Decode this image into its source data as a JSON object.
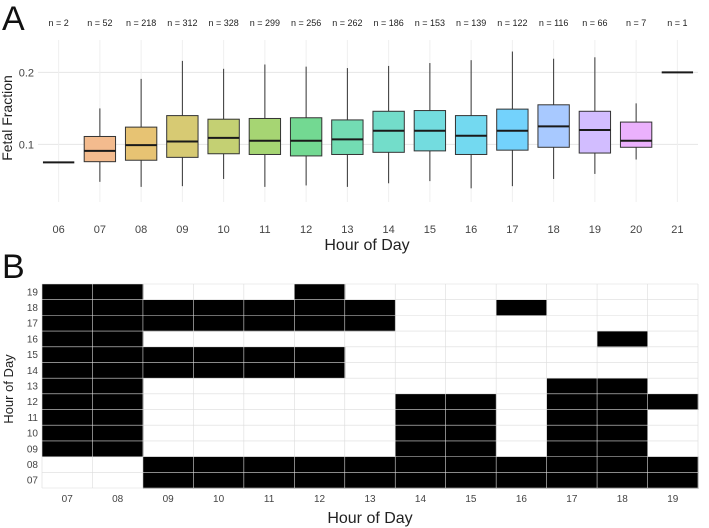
{
  "panels": {
    "a_label": "A",
    "b_label": "B"
  },
  "chart_data": [
    {
      "type": "boxplot",
      "xlabel": "Hour of Day",
      "ylabel": "Fetal Fraction",
      "ylim": [
        0.02,
        0.245
      ],
      "yticks": [
        0.1,
        0.2
      ],
      "ytick_labels": [
        "0.1",
        "0.2"
      ],
      "grid": true,
      "categories": [
        "06",
        "07",
        "08",
        "09",
        "10",
        "11",
        "12",
        "13",
        "14",
        "15",
        "16",
        "17",
        "18",
        "19",
        "20",
        "21"
      ],
      "n_labels": [
        "n = 2",
        "n = 52",
        "n = 218",
        "n = 312",
        "n = 328",
        "n = 299",
        "n = 256",
        "n = 262",
        "n = 186",
        "n = 153",
        "n = 139",
        "n = 122",
        "n = 116",
        "n = 66",
        "n = 7",
        "n = 1"
      ],
      "colors": [
        "#f8766d",
        "#ea8331",
        "#d39200",
        "#b79f00",
        "#93aa00",
        "#5eb300",
        "#00ba38",
        "#00bf74",
        "#00c19f",
        "#00bfc4",
        "#00b9e3",
        "#00adfa",
        "#619cff",
        "#ae87ff",
        "#db72fb",
        "#f564e3"
      ],
      "boxes": [
        {
          "min": 0.075,
          "q1": 0.075,
          "median": 0.075,
          "q3": 0.075,
          "max": 0.075
        },
        {
          "min": 0.048,
          "q1": 0.076,
          "median": 0.091,
          "q3": 0.111,
          "max": 0.15
        },
        {
          "min": 0.041,
          "q1": 0.078,
          "median": 0.099,
          "q3": 0.124,
          "max": 0.191
        },
        {
          "min": 0.042,
          "q1": 0.082,
          "median": 0.104,
          "q3": 0.14,
          "max": 0.216
        },
        {
          "min": 0.052,
          "q1": 0.087,
          "median": 0.109,
          "q3": 0.135,
          "max": 0.205
        },
        {
          "min": 0.041,
          "q1": 0.086,
          "median": 0.105,
          "q3": 0.136,
          "max": 0.211
        },
        {
          "min": 0.043,
          "q1": 0.084,
          "median": 0.105,
          "q3": 0.137,
          "max": 0.208
        },
        {
          "min": 0.041,
          "q1": 0.086,
          "median": 0.107,
          "q3": 0.134,
          "max": 0.206
        },
        {
          "min": 0.046,
          "q1": 0.089,
          "median": 0.119,
          "q3": 0.146,
          "max": 0.209
        },
        {
          "min": 0.049,
          "q1": 0.091,
          "median": 0.119,
          "q3": 0.147,
          "max": 0.213
        },
        {
          "min": 0.039,
          "q1": 0.086,
          "median": 0.112,
          "q3": 0.14,
          "max": 0.217
        },
        {
          "min": 0.042,
          "q1": 0.092,
          "median": 0.119,
          "q3": 0.149,
          "max": 0.229
        },
        {
          "min": 0.052,
          "q1": 0.096,
          "median": 0.125,
          "q3": 0.155,
          "max": 0.219
        },
        {
          "min": 0.059,
          "q1": 0.088,
          "median": 0.12,
          "q3": 0.146,
          "max": 0.221
        },
        {
          "min": 0.079,
          "q1": 0.096,
          "median": 0.105,
          "q3": 0.131,
          "max": 0.157
        },
        {
          "min": 0.2,
          "q1": 0.2,
          "median": 0.2,
          "q3": 0.2,
          "max": 0.2
        }
      ]
    },
    {
      "type": "heatmap",
      "xlabel": "Hour of Day",
      "ylabel": "Hour of Day",
      "x_categories": [
        "07",
        "08",
        "09",
        "10",
        "11",
        "12",
        "13",
        "14",
        "15",
        "16",
        "17",
        "18",
        "19"
      ],
      "y_categories": [
        "19",
        "18",
        "17",
        "16",
        "15",
        "14",
        "13",
        "12",
        "11",
        "10",
        "09",
        "08",
        "07"
      ],
      "colors": {
        "filled": "#000000",
        "empty": "#ffffff",
        "grid": "#dcdcdc"
      },
      "matrix": [
        [
          1,
          1,
          0,
          0,
          0,
          1,
          0,
          0,
          0,
          0,
          0,
          0,
          0
        ],
        [
          1,
          1,
          1,
          1,
          1,
          1,
          1,
          0,
          0,
          1,
          0,
          0,
          0
        ],
        [
          1,
          1,
          1,
          1,
          1,
          1,
          1,
          0,
          0,
          0,
          0,
          0,
          0
        ],
        [
          1,
          1,
          0,
          0,
          0,
          0,
          0,
          0,
          0,
          0,
          0,
          1,
          0
        ],
        [
          1,
          1,
          1,
          1,
          1,
          1,
          0,
          0,
          0,
          0,
          0,
          0,
          0
        ],
        [
          1,
          1,
          1,
          1,
          1,
          1,
          0,
          0,
          0,
          0,
          0,
          0,
          0
        ],
        [
          1,
          1,
          0,
          0,
          0,
          0,
          0,
          0,
          0,
          0,
          1,
          1,
          0
        ],
        [
          1,
          1,
          0,
          0,
          0,
          0,
          0,
          1,
          1,
          0,
          1,
          1,
          1
        ],
        [
          1,
          1,
          0,
          0,
          0,
          0,
          0,
          1,
          1,
          0,
          1,
          1,
          0
        ],
        [
          1,
          1,
          0,
          0,
          0,
          0,
          0,
          1,
          1,
          0,
          1,
          1,
          0
        ],
        [
          1,
          1,
          0,
          0,
          0,
          0,
          0,
          1,
          1,
          0,
          1,
          1,
          0
        ],
        [
          0,
          0,
          1,
          1,
          1,
          1,
          1,
          1,
          1,
          1,
          1,
          1,
          1
        ],
        [
          0,
          0,
          1,
          1,
          1,
          1,
          1,
          1,
          1,
          1,
          1,
          1,
          1
        ]
      ]
    }
  ]
}
